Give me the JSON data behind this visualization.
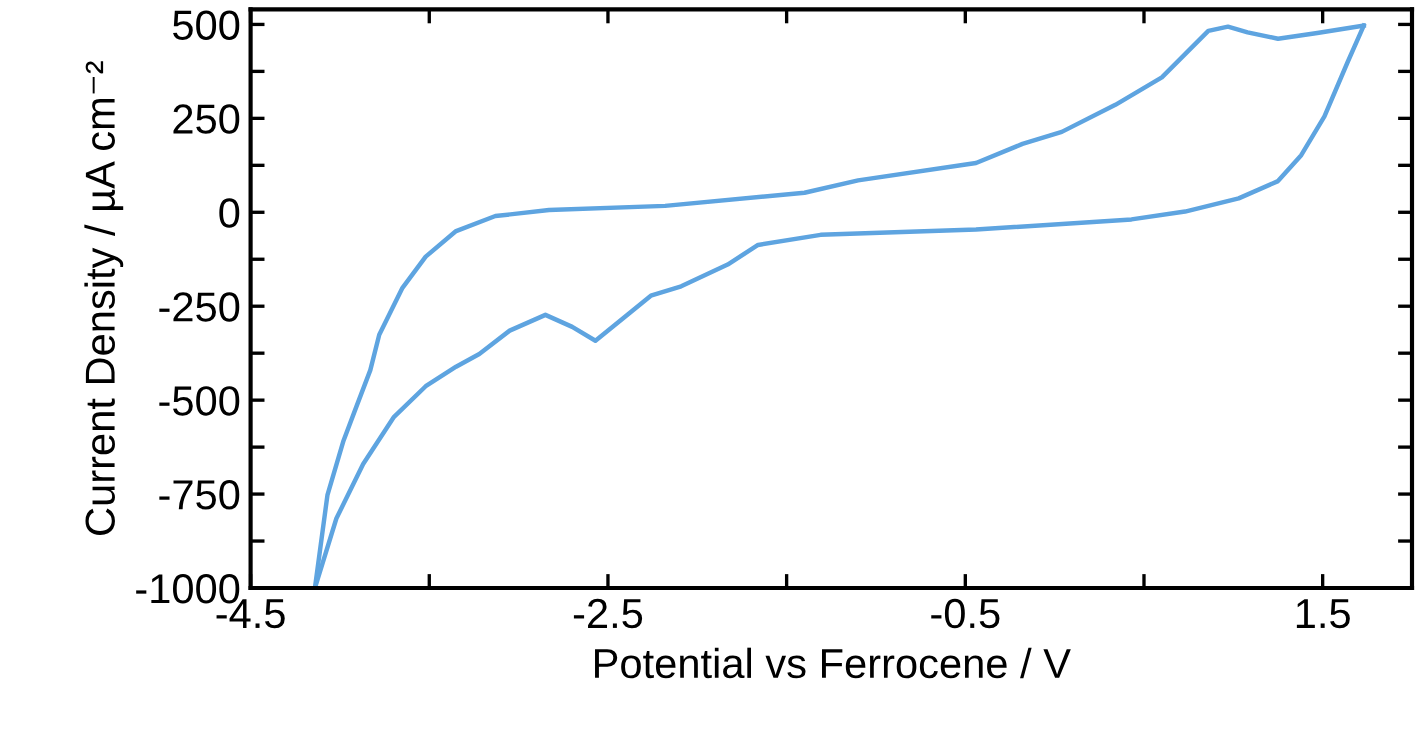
{
  "chart_data": {
    "type": "line",
    "xlabel": "Potential vs Ferrocene / V",
    "ylabel": "Current Density / µA cm⁻²",
    "xlim": [
      -4.5,
      2.0
    ],
    "ylim": [
      -1000,
      540
    ],
    "xticks": [
      -4.5,
      {
        "value": -3.5,
        "label": null
      },
      -2.5,
      {
        "value": -1.5,
        "label": null
      },
      -0.5,
      {
        "value": 0.5,
        "label": null
      },
      1.5
    ],
    "yticks": [
      -1000,
      {
        "value": -875,
        "label": null
      },
      -750,
      {
        "value": -625,
        "label": null
      },
      -500,
      {
        "value": -375,
        "label": null
      },
      -250,
      {
        "value": -125,
        "label": null
      },
      0,
      {
        "value": 125,
        "label": null
      },
      250,
      {
        "value": 375,
        "label": null
      },
      500
    ],
    "grid": false,
    "legend": false,
    "marker": "none",
    "line_style": "solid",
    "series": [
      {
        "color": "#5ea4e0",
        "x": [
          -4.14,
          -4.07,
          -3.98,
          -3.91,
          -3.83,
          -3.78,
          -3.65,
          -3.52,
          -3.35,
          -3.13,
          -2.83,
          -2.18,
          -1.4,
          -1.1,
          -0.44,
          -0.18,
          0.04,
          0.34,
          0.6,
          0.73,
          0.86,
          0.97,
          1.08,
          1.25,
          1.47,
          1.73
        ],
        "values": [
          -1000,
          -753,
          -608,
          -520,
          -420,
          -326,
          -201,
          -118,
          -50,
          -10,
          6,
          17,
          52,
          85,
          131,
          182,
          214,
          286,
          359,
          421,
          483,
          494,
          479,
          462,
          477,
          497
        ]
      },
      {
        "color": "#5ea4e0",
        "x": [
          1.73,
          1.64,
          1.51,
          1.38,
          1.25,
          1.03,
          0.73,
          0.43,
          -0.44,
          -1.31,
          -1.66,
          -1.83,
          -2.09,
          -2.26,
          -2.42,
          -2.57,
          -2.7,
          -2.85,
          -3.05,
          -3.22,
          -3.35,
          -3.52,
          -3.7,
          -3.87,
          -4.02,
          -4.14
        ],
        "values": [
          497,
          400,
          255,
          152,
          83,
          37,
          2,
          -19,
          -46,
          -60,
          -87,
          -139,
          -197,
          -222,
          -284,
          -342,
          -305,
          -273,
          -315,
          -377,
          -411,
          -463,
          -546,
          -670,
          -815,
          -1000
        ]
      }
    ]
  }
}
